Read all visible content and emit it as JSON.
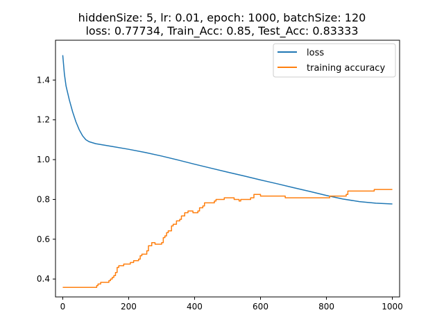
{
  "chart_data": {
    "type": "line",
    "title": "hiddenSize: 5, lr: 0.01, epoch: 1000, batchSize: 120",
    "subtitle": "loss: 0.77734, Train_Acc: 0.85, Test_Acc: 0.83333",
    "xlabel": "",
    "ylabel": "",
    "xlim": [
      -22,
      1022
    ],
    "ylim": [
      0.31,
      1.6
    ],
    "xticks": [
      0,
      200,
      400,
      600,
      800,
      1000
    ],
    "yticks": [
      0.4,
      0.6,
      0.8,
      1.0,
      1.2,
      1.4
    ],
    "ytick_labels": [
      "0.4",
      "0.6",
      "0.8",
      "1.0",
      "1.2",
      "1.4"
    ],
    "grid": false,
    "legend_position": "upper right",
    "series": [
      {
        "name": "loss",
        "color": "#1f77b4",
        "style": "smooth",
        "points": [
          [
            0,
            1.525
          ],
          [
            5,
            1.43
          ],
          [
            10,
            1.37
          ],
          [
            20,
            1.3
          ],
          [
            30,
            1.24
          ],
          [
            40,
            1.19
          ],
          [
            50,
            1.15
          ],
          [
            60,
            1.12
          ],
          [
            70,
            1.1
          ],
          [
            80,
            1.09
          ],
          [
            100,
            1.08
          ],
          [
            150,
            1.066
          ],
          [
            200,
            1.052
          ],
          [
            250,
            1.036
          ],
          [
            300,
            1.018
          ],
          [
            350,
            0.998
          ],
          [
            400,
            0.977
          ],
          [
            450,
            0.957
          ],
          [
            500,
            0.937
          ],
          [
            550,
            0.918
          ],
          [
            600,
            0.898
          ],
          [
            650,
            0.879
          ],
          [
            700,
            0.859
          ],
          [
            750,
            0.84
          ],
          [
            800,
            0.82
          ],
          [
            850,
            0.802
          ],
          [
            900,
            0.789
          ],
          [
            950,
            0.781
          ],
          [
            1000,
            0.777
          ]
        ]
      },
      {
        "name": "training accuracy",
        "color": "#ff7f0e",
        "style": "step",
        "points": [
          [
            0,
            0.358
          ],
          [
            100,
            0.358
          ],
          [
            103,
            0.367
          ],
          [
            107,
            0.375
          ],
          [
            115,
            0.383
          ],
          [
            140,
            0.392
          ],
          [
            145,
            0.4
          ],
          [
            150,
            0.408
          ],
          [
            155,
            0.417
          ],
          [
            160,
            0.433
          ],
          [
            165,
            0.458
          ],
          [
            170,
            0.467
          ],
          [
            180,
            0.467
          ],
          [
            185,
            0.475
          ],
          [
            200,
            0.475
          ],
          [
            205,
            0.483
          ],
          [
            215,
            0.492
          ],
          [
            230,
            0.5
          ],
          [
            235,
            0.517
          ],
          [
            240,
            0.525
          ],
          [
            255,
            0.542
          ],
          [
            260,
            0.567
          ],
          [
            270,
            0.583
          ],
          [
            280,
            0.575
          ],
          [
            300,
            0.583
          ],
          [
            305,
            0.608
          ],
          [
            310,
            0.617
          ],
          [
            315,
            0.633
          ],
          [
            320,
            0.642
          ],
          [
            330,
            0.667
          ],
          [
            335,
            0.675
          ],
          [
            345,
            0.692
          ],
          [
            355,
            0.7
          ],
          [
            360,
            0.717
          ],
          [
            370,
            0.733
          ],
          [
            380,
            0.742
          ],
          [
            395,
            0.733
          ],
          [
            410,
            0.742
          ],
          [
            415,
            0.758
          ],
          [
            425,
            0.767
          ],
          [
            430,
            0.783
          ],
          [
            440,
            0.783
          ],
          [
            460,
            0.792
          ],
          [
            465,
            0.8
          ],
          [
            490,
            0.808
          ],
          [
            520,
            0.8
          ],
          [
            535,
            0.792
          ],
          [
            540,
            0.8
          ],
          [
            570,
            0.808
          ],
          [
            580,
            0.825
          ],
          [
            600,
            0.817
          ],
          [
            675,
            0.808
          ],
          [
            800,
            0.808
          ],
          [
            810,
            0.817
          ],
          [
            860,
            0.825
          ],
          [
            865,
            0.842
          ],
          [
            945,
            0.85
          ],
          [
            1000,
            0.85
          ]
        ]
      }
    ]
  }
}
